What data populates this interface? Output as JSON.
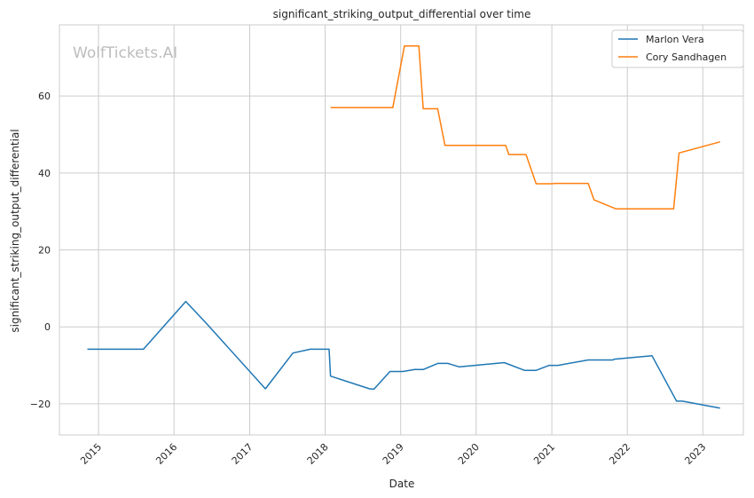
{
  "chart_data": {
    "type": "line",
    "title": "significant_striking_output_differential over time",
    "xlabel": "Date",
    "ylabel": "significant_striking_output_differential",
    "watermark": "WolfTickets.AI",
    "x_ticks": [
      "2015",
      "2016",
      "2017",
      "2018",
      "2019",
      "2020",
      "2021",
      "2022",
      "2023"
    ],
    "y_ticks": [
      -20,
      0,
      20,
      40,
      60
    ],
    "xlim": [
      "2014-06-26",
      "2023-07-16"
    ],
    "ylim": [
      -28.1,
      78.5
    ],
    "grid": true,
    "legend_position": "top-right",
    "series": [
      {
        "name": "Marlon Vera",
        "color": "#1f77b4",
        "points": [
          [
            "2014-11-08",
            -5.8
          ],
          [
            "2015-08-06",
            -5.8
          ],
          [
            "2016-02-27",
            6.6
          ],
          [
            "2016-06-04",
            1.0
          ],
          [
            "2017-03-18",
            -16.1
          ],
          [
            "2017-07-29",
            -6.8
          ],
          [
            "2017-10-21",
            -5.8
          ],
          [
            "2018-01-20",
            -5.8
          ],
          [
            "2018-01-27",
            -12.8
          ],
          [
            "2018-08-04",
            -16.1
          ],
          [
            "2018-08-25",
            -16.2
          ],
          [
            "2018-11-10",
            -11.6
          ],
          [
            "2019-01-12",
            -11.6
          ],
          [
            "2019-03-09",
            -11.1
          ],
          [
            "2019-04-20",
            -11.1
          ],
          [
            "2019-06-29",
            -9.5
          ],
          [
            "2019-08-17",
            -9.5
          ],
          [
            "2019-10-12",
            -10.4
          ],
          [
            "2020-05-16",
            -9.3
          ],
          [
            "2020-08-22",
            -11.3
          ],
          [
            "2020-10-17",
            -11.3
          ],
          [
            "2020-12-19",
            -10.0
          ],
          [
            "2021-01-30",
            -10.0
          ],
          [
            "2021-06-26",
            -8.6
          ],
          [
            "2021-10-23",
            -8.6
          ],
          [
            "2021-10-30",
            -8.4
          ],
          [
            "2022-04-30",
            -7.5
          ],
          [
            "2022-08-27",
            -19.3
          ],
          [
            "2022-09-24",
            -19.3
          ],
          [
            "2023-03-25",
            -21.1
          ]
        ]
      },
      {
        "name": "Cory Sandhagen",
        "color": "#ff7f0e",
        "points": [
          [
            "2018-01-27",
            57.0
          ],
          [
            "2018-11-24",
            57.0
          ],
          [
            "2019-01-19",
            73.0
          ],
          [
            "2019-03-30",
            73.0
          ],
          [
            "2019-04-20",
            56.7
          ],
          [
            "2019-06-29",
            56.7
          ],
          [
            "2019-08-03",
            47.2
          ],
          [
            "2020-05-23",
            47.2
          ],
          [
            "2020-06-07",
            44.8
          ],
          [
            "2020-08-29",
            44.8
          ],
          [
            "2020-10-17",
            37.2
          ],
          [
            "2020-12-26",
            37.2
          ],
          [
            "2021-01-23",
            37.3
          ],
          [
            "2021-06-26",
            37.3
          ],
          [
            "2021-07-24",
            33.0
          ],
          [
            "2021-11-06",
            30.7
          ],
          [
            "2022-08-13",
            30.7
          ],
          [
            "2022-09-08",
            45.2
          ],
          [
            "2023-03-25",
            48.1
          ]
        ]
      }
    ]
  }
}
